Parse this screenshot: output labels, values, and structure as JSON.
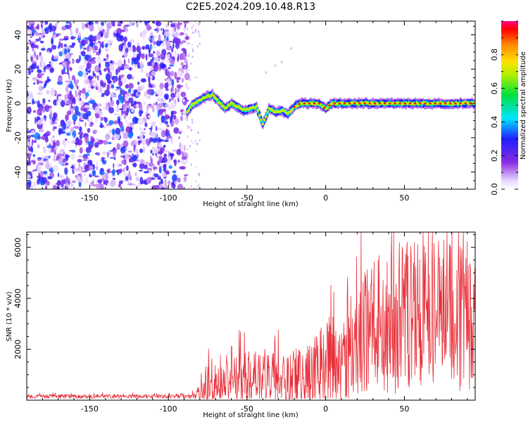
{
  "title": "C2E5.2024.209.10.48.R13",
  "chart_data": [
    {
      "type": "heatmap",
      "name": "spectrogram",
      "xlabel": "Height of straight line (km)",
      "ylabel": "Frequency (Hz)",
      "xlim": [
        -190,
        95
      ],
      "ylim": [
        -50,
        48
      ],
      "xticks": [
        -150,
        -100,
        -50,
        0,
        50
      ],
      "yticks": [
        -40,
        -20,
        0,
        20,
        40
      ],
      "colorbar": {
        "label": "Normalized spectral amplitude",
        "range": [
          0,
          1
        ],
        "ticks": [
          0.0,
          0.2,
          0.4,
          0.6,
          0.8
        ],
        "tick_labels": [
          "0.0",
          "0.2",
          "0.4",
          "0.6",
          "0.8"
        ]
      },
      "noise_region_km": [
        -190,
        -88
      ],
      "ridge": {
        "x": [
          -88,
          -85,
          -80,
          -76,
          -72,
          -68,
          -64,
          -60,
          -56,
          -52,
          -48,
          -44,
          -40,
          -36,
          -32,
          -28,
          -24,
          -20,
          -16,
          -12,
          -8,
          -4,
          0,
          4,
          8,
          12,
          20,
          30,
          40,
          50,
          60,
          70,
          80,
          95
        ],
        "freq": [
          -5,
          -1,
          2,
          4,
          5,
          1,
          -3,
          0,
          -2,
          -4,
          -3,
          -2,
          -12,
          -3,
          -5,
          -4,
          -6,
          -2,
          0,
          0,
          0,
          0,
          -3,
          0,
          0,
          0,
          0,
          0,
          0,
          0,
          0,
          0,
          0,
          0
        ],
        "amplitude": [
          0.35,
          0.45,
          0.55,
          0.6,
          0.55,
          0.6,
          0.7,
          0.85,
          0.6,
          0.55,
          0.5,
          0.5,
          0.45,
          0.5,
          0.45,
          0.45,
          0.5,
          0.6,
          0.75,
          0.8,
          0.85,
          0.85,
          0.7,
          0.85,
          0.9,
          0.9,
          0.9,
          0.92,
          0.95,
          0.92,
          0.95,
          0.95,
          0.92,
          0.85
        ]
      },
      "outliers": [
        {
          "x": -38,
          "freq": 18
        },
        {
          "x": -32,
          "freq": 22
        },
        {
          "x": -28,
          "freq": 24
        },
        {
          "x": -22,
          "freq": 32
        }
      ]
    },
    {
      "type": "line",
      "name": "snr",
      "xlabel": "Height of straight line (km)",
      "ylabel": "SNR (10 * v/v)",
      "xlim": [
        -190,
        95
      ],
      "ylim": [
        0,
        6600
      ],
      "xticks": [
        -150,
        -100,
        -50,
        0,
        50
      ],
      "yticks": [
        2000,
        4000,
        6000
      ],
      "color": "#e8303a",
      "series": [
        {
          "name": "SNR",
          "x": [
            -190,
            -180,
            -170,
            -160,
            -150,
            -140,
            -130,
            -120,
            -110,
            -100,
            -90,
            -85,
            -80,
            -75,
            -72,
            -70,
            -65,
            -60,
            -55,
            -50,
            -45,
            -40,
            -35,
            -30,
            -25,
            -20,
            -15,
            -10,
            -5,
            0,
            5,
            10,
            15,
            20,
            25,
            30,
            35,
            40,
            45,
            50,
            55,
            60,
            65,
            70,
            75,
            80,
            85,
            90,
            95
          ],
          "base": [
            150,
            150,
            150,
            150,
            150,
            150,
            150,
            150,
            150,
            150,
            150,
            150,
            300,
            650,
            900,
            700,
            650,
            700,
            800,
            800,
            850,
            800,
            850,
            800,
            850,
            850,
            900,
            1000,
            1100,
            1300,
            1500,
            1700,
            2100,
            2400,
            2600,
            2900,
            3000,
            3100,
            3200,
            3200,
            3300,
            3300,
            3300,
            3300,
            3300,
            3350,
            3350,
            3350,
            3400
          ],
          "amplitude": [
            80,
            80,
            80,
            80,
            90,
            90,
            80,
            80,
            80,
            80,
            80,
            100,
            350,
            1000,
            1300,
            800,
            700,
            900,
            1100,
            1100,
            1100,
            900,
            1200,
            1100,
            1300,
            1200,
            1200,
            1500,
            1600,
            1800,
            2000,
            2000,
            2300,
            2400,
            2500,
            2700,
            2800,
            2900,
            3000,
            3000,
            3000,
            3000,
            3000,
            3000,
            3100,
            3100,
            3100,
            3100,
            3200
          ]
        }
      ]
    }
  ]
}
